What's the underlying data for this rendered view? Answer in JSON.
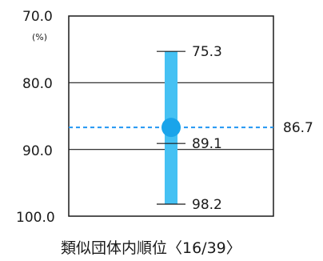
{
  "chart_data": {
    "type": "range",
    "y_axis": {
      "min": 70,
      "max": 100,
      "inverted": true,
      "ticks": [
        "70.0",
        "80.0",
        "90.0",
        "100.0"
      ],
      "tick_values": [
        70,
        80,
        90,
        100
      ],
      "unit": "(%)"
    },
    "range": {
      "min_value": 75.3,
      "min_label": "75.3",
      "max_value": 98.2,
      "max_label": "98.2",
      "median_value": 89.1,
      "median_label": "89.1"
    },
    "point": {
      "value": 86.7,
      "label": "86.7"
    },
    "caption": "類似団体内順位〈16/39〉",
    "grid": true
  },
  "colors": {
    "bar": "#45c1f3",
    "point": "#1aa4ea",
    "reference_line": "#2196f3",
    "axis": "#1a1a1a"
  }
}
